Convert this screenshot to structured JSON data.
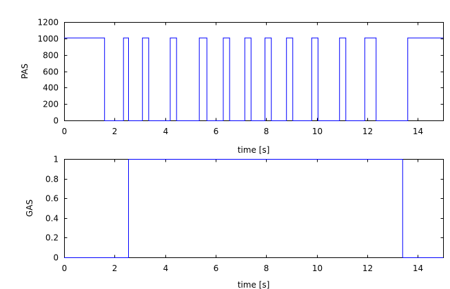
{
  "chart_data": [
    {
      "type": "line",
      "xlabel": "time [s]",
      "ylabel": "PAS",
      "xlim": [
        0,
        15
      ],
      "ylim": [
        0,
        1200
      ],
      "xticks": [
        0,
        2,
        4,
        6,
        8,
        10,
        12,
        14
      ],
      "yticks": [
        0,
        200,
        400,
        600,
        800,
        1000,
        1200
      ],
      "xtick_labels": [
        "0",
        "2",
        "4",
        "6",
        "8",
        "10",
        "12",
        "14"
      ],
      "ytick_labels": [
        "0",
        "200",
        "400",
        "600",
        "800",
        "1000",
        "1200"
      ],
      "grid": false,
      "color": "#0000ff",
      "series": [
        {
          "x": [
            0,
            1.6,
            1.6,
            2.35,
            2.35,
            2.55,
            2.55,
            3.1,
            3.1,
            3.35,
            3.35,
            4.2,
            4.2,
            4.45,
            4.45,
            5.35,
            5.35,
            5.65,
            5.65,
            6.3,
            6.3,
            6.55,
            6.55,
            7.15,
            7.15,
            7.4,
            7.4,
            7.95,
            7.95,
            8.2,
            8.2,
            8.8,
            8.8,
            9.05,
            9.05,
            9.8,
            9.8,
            10.05,
            10.05,
            10.9,
            10.9,
            11.15,
            11.15,
            11.9,
            11.9,
            12.35,
            12.35,
            13.6,
            13.6,
            15
          ],
          "y": [
            1010,
            1010,
            0,
            0,
            1010,
            1010,
            0,
            0,
            1010,
            1010,
            0,
            0,
            1010,
            1010,
            0,
            0,
            1010,
            1010,
            0,
            0,
            1010,
            1010,
            0,
            0,
            1010,
            1010,
            0,
            0,
            1010,
            1010,
            0,
            0,
            1010,
            1010,
            0,
            0,
            1010,
            1010,
            0,
            0,
            1010,
            1010,
            0,
            0,
            1010,
            1010,
            0,
            0,
            1010,
            1010
          ]
        }
      ]
    },
    {
      "type": "line",
      "xlabel": "time [s]",
      "ylabel": "GAS",
      "xlim": [
        0,
        15
      ],
      "ylim": [
        0,
        1
      ],
      "xticks": [
        0,
        2,
        4,
        6,
        8,
        10,
        12,
        14
      ],
      "yticks": [
        0,
        0.2,
        0.4,
        0.6,
        0.8,
        1
      ],
      "xtick_labels": [
        "0",
        "2",
        "4",
        "6",
        "8",
        "10",
        "12",
        "14"
      ],
      "ytick_labels": [
        "0",
        "0.2",
        "0.4",
        "0.6",
        "0.8",
        "1"
      ],
      "grid": false,
      "color": "#0000ff",
      "series": [
        {
          "x": [
            0,
            2.55,
            2.55,
            13.4,
            13.4,
            15
          ],
          "y": [
            0,
            0,
            1,
            1,
            0,
            0
          ]
        }
      ]
    }
  ]
}
